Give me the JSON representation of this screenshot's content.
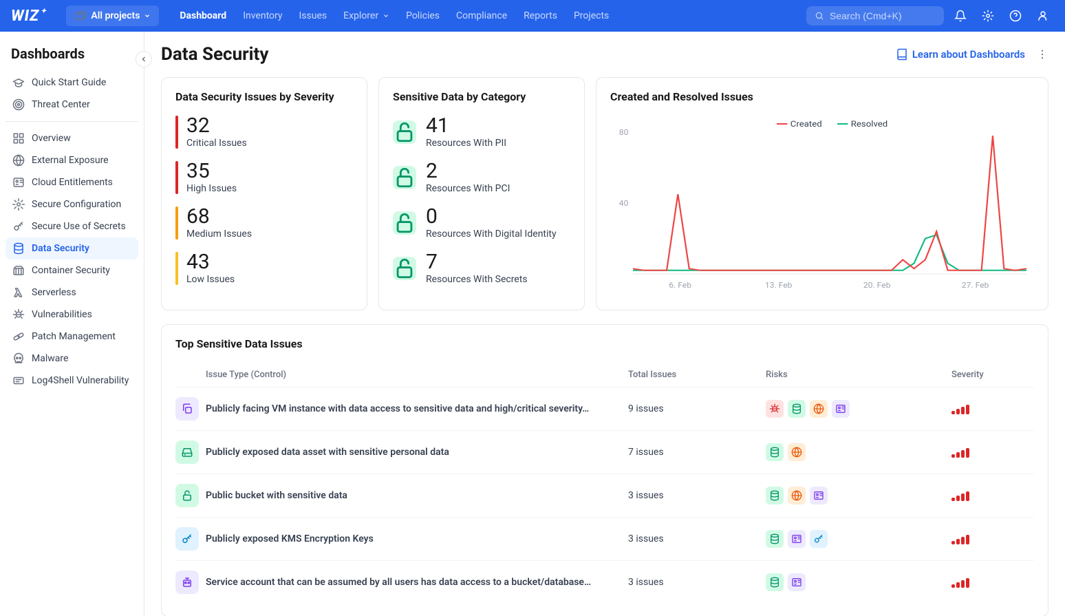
{
  "topnav": {
    "logo": "WIZ",
    "projects_label": "All projects",
    "items": [
      {
        "label": "Dashboard",
        "active": true,
        "dropdown": false
      },
      {
        "label": "Inventory",
        "active": false,
        "dropdown": false
      },
      {
        "label": "Issues",
        "active": false,
        "dropdown": false
      },
      {
        "label": "Explorer",
        "active": false,
        "dropdown": true
      },
      {
        "label": "Policies",
        "active": false,
        "dropdown": false
      },
      {
        "label": "Compliance",
        "active": false,
        "dropdown": false
      },
      {
        "label": "Reports",
        "active": false,
        "dropdown": false
      },
      {
        "label": "Projects",
        "active": false,
        "dropdown": false
      }
    ],
    "search_placeholder": "Search (Cmd+K)"
  },
  "sidebar": {
    "title": "Dashboards",
    "groups": [
      [
        {
          "label": "Quick Start Guide",
          "icon": "grad-cap"
        },
        {
          "label": "Threat Center",
          "icon": "target"
        }
      ],
      [
        {
          "label": "Overview",
          "icon": "apps"
        },
        {
          "label": "External Exposure",
          "icon": "globe"
        },
        {
          "label": "Cloud Entitlements",
          "icon": "id-card"
        },
        {
          "label": "Secure Configuration",
          "icon": "gear"
        },
        {
          "label": "Secure Use of Secrets",
          "icon": "key"
        },
        {
          "label": "Data Security",
          "icon": "database",
          "active": true
        },
        {
          "label": "Container Security",
          "icon": "container"
        },
        {
          "label": "Serverless",
          "icon": "lambda"
        },
        {
          "label": "Vulnerabilities",
          "icon": "bug"
        },
        {
          "label": "Patch Management",
          "icon": "bandage"
        },
        {
          "label": "Malware",
          "icon": "skull"
        },
        {
          "label": "Log4Shell Vulnerability",
          "icon": "log"
        }
      ]
    ]
  },
  "page": {
    "title": "Data Security",
    "learn_link": "Learn about Dashboards"
  },
  "severity_card": {
    "title": "Data Security Issues by Severity",
    "items": [
      {
        "count": "32",
        "label": "Critical Issues",
        "color": "#dc2626"
      },
      {
        "count": "35",
        "label": "High Issues",
        "color": "#dc2626"
      },
      {
        "count": "68",
        "label": "Medium Issues",
        "color": "#f59e0b"
      },
      {
        "count": "43",
        "label": "Low Issues",
        "color": "#fbbf24"
      }
    ]
  },
  "category_card": {
    "title": "Sensitive Data by Category",
    "items": [
      {
        "count": "41",
        "label": "Resources With PII"
      },
      {
        "count": "2",
        "label": "Resources With PCI"
      },
      {
        "count": "0",
        "label": "Resources With Digital Identity"
      },
      {
        "count": "7",
        "label": "Resources With Secrets"
      }
    ]
  },
  "chart_card": {
    "title": "Created and Resolved Issues",
    "legend": [
      {
        "label": "Created",
        "color": "#ef4444"
      },
      {
        "label": "Resolved",
        "color": "#10b981"
      }
    ],
    "y_ticks": [
      "80",
      "40"
    ],
    "x_labels": [
      "6. Feb",
      "13. Feb",
      "20. Feb",
      "27. Feb"
    ],
    "y_max": 80,
    "created_series": [
      3,
      2,
      2,
      2,
      45,
      3,
      2,
      2,
      2,
      2,
      2,
      2,
      2,
      2,
      2,
      2,
      2,
      2,
      2,
      2,
      2,
      2,
      2,
      2,
      8,
      3,
      8,
      24,
      2,
      2,
      2,
      2,
      78,
      3,
      2,
      3
    ],
    "resolved_series": [
      2,
      2,
      2,
      2,
      2,
      2,
      2,
      2,
      2,
      2,
      2,
      2,
      2,
      2,
      2,
      2,
      2,
      2,
      2,
      2,
      2,
      2,
      2,
      2,
      2,
      6,
      20,
      22,
      6,
      2,
      2,
      2,
      2,
      2,
      2,
      2
    ],
    "colors": {
      "created": "#ef4444",
      "resolved": "#10b981",
      "grid": "#e5e7eb",
      "axis_text": "#9ca3af"
    }
  },
  "table_card": {
    "title": "Top Sensitive Data Issues",
    "columns": {
      "type": "Issue Type (Control)",
      "total": "Total Issues",
      "risks": "Risks",
      "severity": "Severity"
    },
    "rows": [
      {
        "icon": "copy",
        "icon_bg": "#ede9fe",
        "icon_color": "#7c3aed",
        "type": "Publicly facing VM instance with data access to sensitive data and high/critical severity…",
        "total": "9 issues",
        "risks": [
          {
            "icon": "bug",
            "bg": "#fee2e2",
            "color": "#dc2626"
          },
          {
            "icon": "database",
            "bg": "#d1fae5",
            "color": "#059669"
          },
          {
            "icon": "globe",
            "bg": "#ffedd5",
            "color": "#ea580c"
          },
          {
            "icon": "id-card",
            "bg": "#ede9fe",
            "color": "#7c3aed"
          }
        ],
        "severity": "critical"
      },
      {
        "icon": "drive",
        "icon_bg": "#d1fae5",
        "icon_color": "#059669",
        "type": "Publicly exposed data asset with sensitive personal data",
        "total": "7 issues",
        "risks": [
          {
            "icon": "database",
            "bg": "#d1fae5",
            "color": "#059669"
          },
          {
            "icon": "globe",
            "bg": "#ffedd5",
            "color": "#ea580c"
          }
        ],
        "severity": "critical"
      },
      {
        "icon": "unlock",
        "icon_bg": "#d1fae5",
        "icon_color": "#059669",
        "type": "Public bucket with sensitive data",
        "total": "3 issues",
        "risks": [
          {
            "icon": "database",
            "bg": "#d1fae5",
            "color": "#059669"
          },
          {
            "icon": "globe",
            "bg": "#ffedd5",
            "color": "#ea580c"
          },
          {
            "icon": "id-card",
            "bg": "#ede9fe",
            "color": "#7c3aed"
          }
        ],
        "severity": "critical"
      },
      {
        "icon": "key",
        "icon_bg": "#e0f2fe",
        "icon_color": "#0284c7",
        "type": "Publicly exposed KMS Encryption Keys",
        "total": "3 issues",
        "risks": [
          {
            "icon": "database",
            "bg": "#d1fae5",
            "color": "#059669"
          },
          {
            "icon": "id-card",
            "bg": "#ede9fe",
            "color": "#7c3aed"
          },
          {
            "icon": "key",
            "bg": "#e0f2fe",
            "color": "#0284c7"
          }
        ],
        "severity": "critical"
      },
      {
        "icon": "robot",
        "icon_bg": "#ede9fe",
        "icon_color": "#7c3aed",
        "type": "Service account that can be assumed by all users has data access to a bucket/database…",
        "total": "3 issues",
        "risks": [
          {
            "icon": "database",
            "bg": "#d1fae5",
            "color": "#059669"
          },
          {
            "icon": "id-card",
            "bg": "#ede9fe",
            "color": "#7c3aed"
          }
        ],
        "severity": "critical"
      }
    ]
  },
  "severity_bar_styles": {
    "critical": {
      "color": "#dc2626",
      "heights": [
        5,
        8,
        11,
        14
      ]
    }
  }
}
